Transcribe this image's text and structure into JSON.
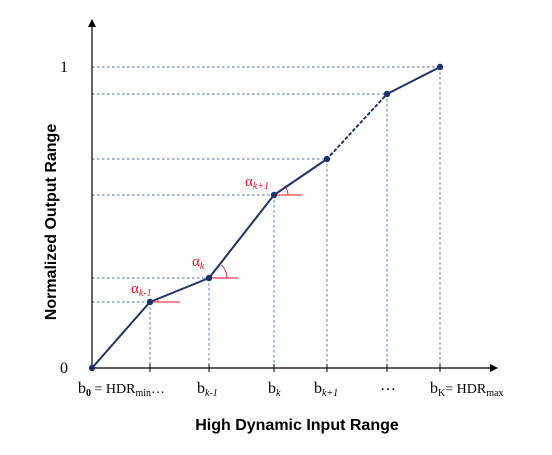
{
  "y_axis": {
    "title": "Normalized Output Range",
    "tick_top": "1",
    "tick_origin": "0"
  },
  "x_axis": {
    "title": "High Dynamic Input Range",
    "labels": {
      "b0_base": "b",
      "b0_sub": "0",
      "b0_eq": " = HDR",
      "b0_hdr_sub": "min",
      "b0_dots": "…",
      "bk_minus_base": "b",
      "bk_minus_sub": "k-1",
      "bk_base": "b",
      "bk_sub": "k",
      "bk_plus_base": "b",
      "bk_plus_sub": "k+1",
      "ellipsis": "…",
      "bK_base": "b",
      "bK_sub": "K",
      "bK_eq": "= HDR",
      "bK_hdr_sub": "max"
    }
  },
  "alphas": {
    "a_km1_base": "α",
    "a_km1_sub": "k-1",
    "a_k_base": "α",
    "a_k_sub": "k",
    "a_kp1_base": "α",
    "a_kp1_sub": "k+1"
  },
  "colors": {
    "curve": "#1f3366",
    "guide": "#4a6fc0",
    "alpha": "#e8141c",
    "axis": "#000000"
  }
}
